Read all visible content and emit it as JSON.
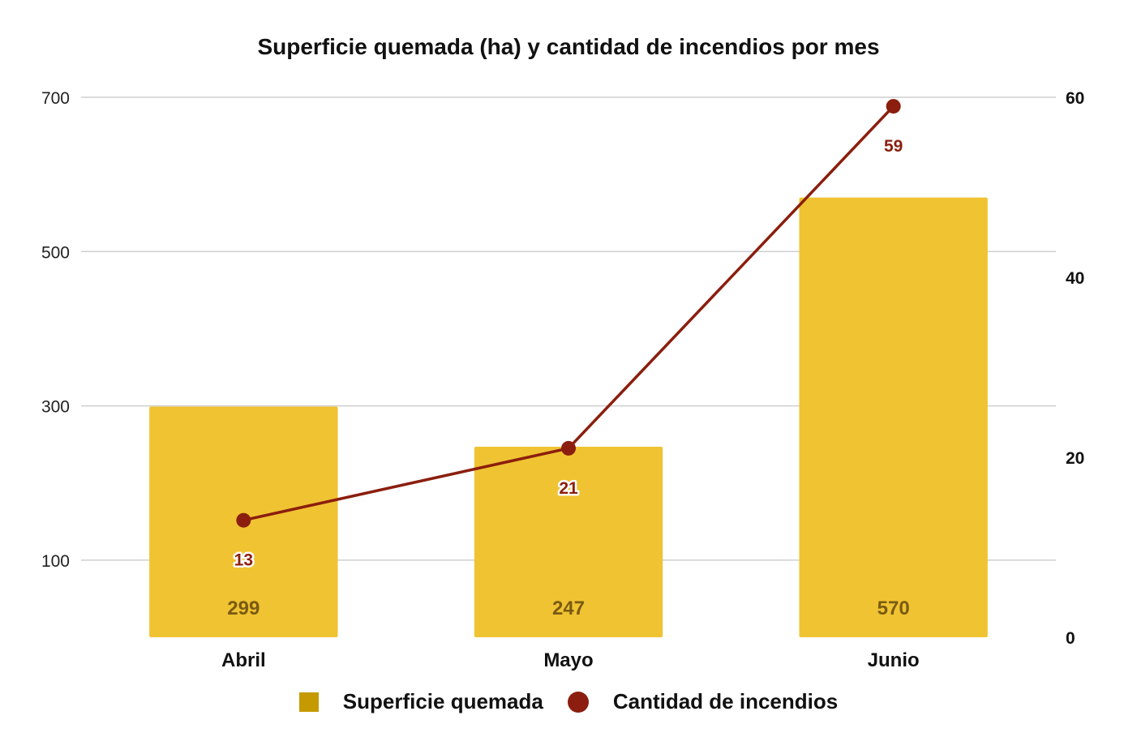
{
  "chart_data": {
    "type": "bar",
    "title": "Superficie quemada (ha) y cantidad de incendios por mes",
    "categories": [
      "Abril",
      "Mayo",
      "Junio"
    ],
    "series": [
      {
        "name": "Superficie quemada",
        "type": "bar",
        "axis": "left",
        "values": [
          299,
          247,
          570
        ],
        "color": "#F0C332",
        "label_color": "#7A5A12"
      },
      {
        "name": "Cantidad de incendios",
        "type": "line",
        "axis": "right",
        "values": [
          13,
          21,
          59
        ],
        "color": "#8B1E0E",
        "label_color": "#8B1E0E"
      }
    ],
    "y_left": {
      "ticks": [
        "700",
        "500",
        "300",
        "100"
      ],
      "ylim": [
        0,
        700
      ]
    },
    "y_right": {
      "ticks": [
        "60",
        "40",
        "20",
        "0"
      ],
      "ylim": [
        0,
        60
      ]
    },
    "grid": true,
    "legend_position": "bottom",
    "legend_colors": {
      "square": "#C49A00",
      "circle": "#8B1E0E"
    }
  }
}
